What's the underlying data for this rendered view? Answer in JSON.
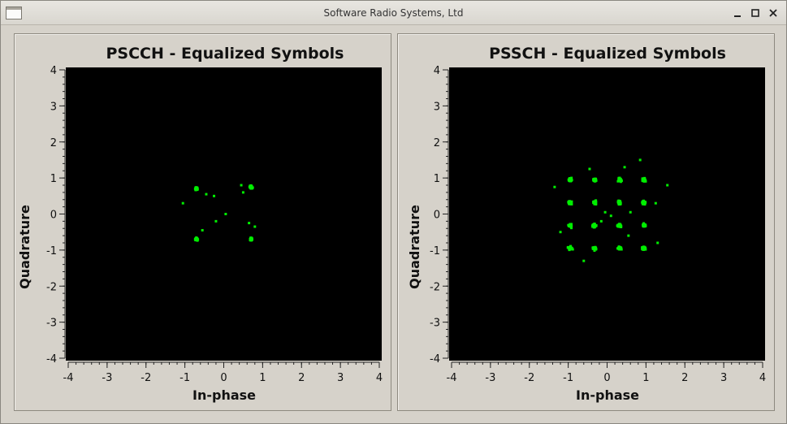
{
  "window": {
    "title": "Software Radio Systems, Ltd",
    "controls": [
      "minimize",
      "maximize",
      "close"
    ]
  },
  "colors": {
    "plot_background": "#000000",
    "symbol_color": "#00ee00",
    "window_background": "#d6d2ca"
  },
  "chart_data": [
    {
      "type": "scatter",
      "title": "PSCCH - Equalized Symbols",
      "xlabel": "In-phase",
      "ylabel": "Quadrature",
      "xlim": [
        -4,
        4
      ],
      "ylim": [
        -4,
        4
      ],
      "xticks": [
        "-4",
        "-3",
        "-2",
        "-1",
        "0",
        "1",
        "2",
        "3",
        "4"
      ],
      "yticks": [
        "4",
        "3",
        "2",
        "1",
        "0",
        "-1",
        "-2",
        "-3",
        "-4"
      ],
      "grid": false,
      "constellation": "QPSK",
      "clusters": [
        [
          -0.7,
          0.7
        ],
        [
          0.7,
          0.75
        ],
        [
          -0.7,
          -0.7
        ],
        [
          0.7,
          -0.7
        ]
      ],
      "outliers": [
        [
          -1.05,
          0.3
        ],
        [
          -0.45,
          0.55
        ],
        [
          -0.25,
          0.5
        ],
        [
          0.45,
          0.8
        ],
        [
          0.05,
          0.0
        ],
        [
          -0.2,
          -0.2
        ],
        [
          -0.55,
          -0.45
        ],
        [
          0.65,
          -0.25
        ],
        [
          0.8,
          -0.35
        ],
        [
          0.5,
          0.6
        ]
      ]
    },
    {
      "type": "scatter",
      "title": "PSSCH - Equalized Symbols",
      "xlabel": "In-phase",
      "ylabel": "Quadrature",
      "xlim": [
        -4,
        4
      ],
      "ylim": [
        -4,
        4
      ],
      "xticks": [
        "-4",
        "-3",
        "-2",
        "-1",
        "0",
        "1",
        "2",
        "3",
        "4"
      ],
      "yticks": [
        "4",
        "3",
        "2",
        "1",
        "0",
        "-1",
        "-2",
        "-3",
        "-4"
      ],
      "grid": false,
      "constellation": "16QAM",
      "clusters": [
        [
          -0.95,
          0.95
        ],
        [
          -0.32,
          0.95
        ],
        [
          0.32,
          0.95
        ],
        [
          0.95,
          0.95
        ],
        [
          -0.95,
          0.32
        ],
        [
          -0.32,
          0.32
        ],
        [
          0.32,
          0.32
        ],
        [
          0.95,
          0.32
        ],
        [
          -0.95,
          -0.32
        ],
        [
          -0.32,
          -0.32
        ],
        [
          0.32,
          -0.32
        ],
        [
          0.95,
          -0.32
        ],
        [
          -0.95,
          -0.95
        ],
        [
          -0.32,
          -0.95
        ],
        [
          0.32,
          -0.95
        ],
        [
          0.95,
          -0.95
        ]
      ],
      "outliers": [
        [
          -1.35,
          0.75
        ],
        [
          1.55,
          0.8
        ],
        [
          0.85,
          1.5
        ],
        [
          -0.45,
          1.25
        ],
        [
          0.45,
          1.3
        ],
        [
          -0.6,
          -1.3
        ],
        [
          0.1,
          -0.05
        ],
        [
          -0.05,
          0.05
        ],
        [
          0.6,
          0.05
        ],
        [
          -0.15,
          -0.2
        ],
        [
          1.25,
          0.3
        ],
        [
          -1.2,
          -0.5
        ],
        [
          0.55,
          -0.6
        ],
        [
          1.3,
          -0.8
        ]
      ]
    }
  ]
}
